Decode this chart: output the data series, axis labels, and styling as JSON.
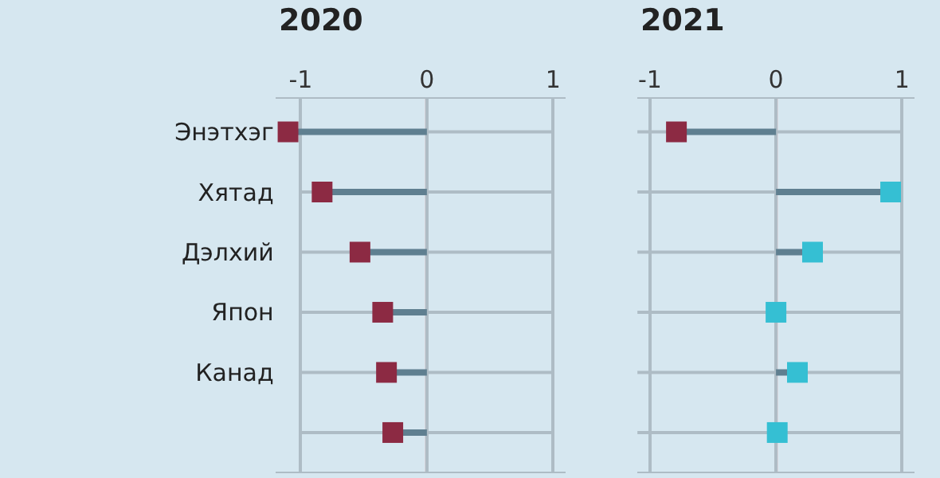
{
  "chart_data": [
    {
      "type": "lollipop",
      "orientation": "horizontal",
      "title": "2020",
      "categories": [
        "Энэтхэг",
        "Хятад",
        "Дэлхий",
        "Япон",
        "Канад",
        null
      ],
      "series": [
        {
          "values": [
            -1.1,
            -0.83,
            -0.53,
            -0.35,
            -0.32,
            -0.27
          ],
          "colors": [
            "#8c2a43",
            "#8c2a43",
            "#8c2a43",
            "#8c2a43",
            "#8c2a43",
            "#8c2a43"
          ],
          "color": "#5f7f90"
        }
      ],
      "xlim": [
        -1.2,
        1.1
      ],
      "xticks": [
        -1,
        0,
        1
      ],
      "grid": true,
      "ref_lines": [
        {
          "axis": "x",
          "value": 0,
          "color": "#e06a60"
        }
      ]
    },
    {
      "type": "lollipop",
      "orientation": "horizontal",
      "title": "2021",
      "categories": [
        "Энэтхэг",
        "Хятад",
        "Дэлхий",
        "Япон",
        "Канад",
        null
      ],
      "series": [
        {
          "values": [
            -0.79,
            0.91,
            0.29,
            0.0,
            0.17,
            0.01
          ],
          "colors": [
            "#8c2a43",
            "#35bfd3",
            "#35bfd3",
            "#35bfd3",
            "#35bfd3",
            "#35bfd3"
          ],
          "color": "#5f7f90"
        }
      ],
      "xlim": [
        -1.1,
        1.1
      ],
      "xticks": [
        -1,
        0,
        1
      ],
      "grid": true,
      "tick_labels": "x",
      "ref_lines": [
        {
          "axis": "x",
          "value": 0,
          "color": "#e06a60"
        }
      ]
    }
  ]
}
